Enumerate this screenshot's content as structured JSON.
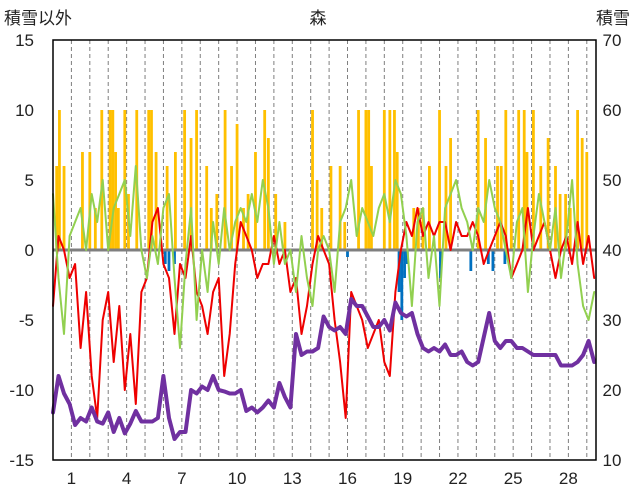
{
  "chart_data": {
    "type": "line",
    "title": "森",
    "left_axis_label": "積雪以外",
    "right_axis_label": "積雪",
    "left_ylim": [
      -15,
      15
    ],
    "left_yticks": [
      15,
      10,
      5,
      0,
      -5,
      -10,
      -15
    ],
    "right_ylim": [
      10,
      70
    ],
    "right_yticks": [
      70,
      60,
      50,
      40,
      30,
      20,
      10
    ],
    "xlim": [
      0,
      29.5
    ],
    "xticks": [
      1,
      4,
      7,
      10,
      13,
      16,
      19,
      22,
      25,
      28
    ],
    "grid_day_lines": true,
    "zero_line": true,
    "colors": {
      "red": "#ee0000",
      "green": "#92d050",
      "purple": "#7030a0",
      "orange": "#ffc000",
      "blue": "#0070c0",
      "zero": "#7f7f7f",
      "frame": "#000000",
      "grid": "#7f7f7f"
    },
    "series": [
      {
        "axis": "left",
        "color": "red",
        "x": [
          0,
          0.3,
          0.6,
          0.9,
          1.2,
          1.5,
          1.8,
          2.1,
          2.4,
          2.7,
          3.0,
          3.3,
          3.6,
          3.9,
          4.2,
          4.5,
          4.8,
          5.1,
          5.4,
          5.7,
          6.0,
          6.3,
          6.6,
          6.9,
          7.2,
          7.5,
          7.8,
          8.1,
          8.4,
          8.7,
          9.0,
          9.3,
          9.6,
          9.9,
          10.2,
          10.5,
          10.8,
          11.1,
          11.4,
          11.7,
          12.0,
          12.3,
          12.6,
          12.9,
          13.2,
          13.5,
          13.8,
          14.1,
          14.4,
          14.7,
          15.0,
          15.3,
          15.6,
          15.9,
          16.2,
          16.5,
          16.8,
          17.1,
          17.4,
          17.7,
          18.0,
          18.3,
          18.6,
          18.9,
          19.2,
          19.5,
          19.8,
          20.1,
          20.4,
          20.7,
          21.0,
          21.3,
          21.6,
          21.9,
          22.2,
          22.5,
          22.8,
          23.1,
          23.4,
          23.7,
          24.0,
          24.3,
          24.6,
          24.9,
          25.2,
          25.5,
          25.8,
          26.1,
          26.4,
          26.7,
          27.0,
          27.3,
          27.6,
          27.9,
          28.2,
          28.5,
          28.8,
          29.1,
          29.4
        ],
        "y": [
          -4,
          1,
          0,
          -2,
          -1,
          -7,
          -3,
          -9,
          -12,
          -5,
          -3,
          -8,
          -4,
          -10,
          -6,
          -11,
          -3,
          -2,
          2,
          3,
          -1,
          -2,
          -6,
          -1,
          -2,
          1,
          -3,
          -4,
          -6,
          -3,
          -2,
          -9,
          -6,
          -1,
          2,
          1,
          0,
          -2,
          -1,
          -1,
          1,
          -1,
          0,
          -3,
          -2,
          -6,
          -4,
          -1,
          1,
          0,
          -1,
          -5,
          -8,
          -12,
          -3,
          -4,
          -5,
          -7,
          -6,
          -5,
          -8,
          -9,
          -3,
          0,
          2,
          1,
          3,
          1,
          2,
          1,
          2,
          2,
          0,
          2,
          1,
          1,
          2,
          1,
          -1,
          0,
          1,
          2,
          1,
          -2,
          -1,
          0,
          3,
          0,
          1,
          2,
          0,
          -2,
          0,
          1,
          -1,
          2,
          -1,
          1,
          -2
        ]
      },
      {
        "axis": "left",
        "color": "green",
        "x": [
          0,
          0.3,
          0.6,
          0.9,
          1.2,
          1.5,
          1.8,
          2.1,
          2.4,
          2.7,
          3.0,
          3.3,
          3.6,
          3.9,
          4.2,
          4.5,
          4.8,
          5.1,
          5.4,
          5.7,
          6.0,
          6.3,
          6.6,
          6.9,
          7.2,
          7.5,
          7.8,
          8.1,
          8.4,
          8.7,
          9.0,
          9.3,
          9.6,
          9.9,
          10.2,
          10.5,
          10.8,
          11.1,
          11.4,
          11.7,
          12.0,
          12.3,
          12.6,
          12.9,
          13.2,
          13.5,
          13.8,
          14.1,
          14.4,
          14.7,
          15.0,
          15.3,
          15.6,
          15.9,
          16.2,
          16.5,
          16.8,
          17.1,
          17.4,
          17.7,
          18.0,
          18.3,
          18.6,
          18.9,
          19.2,
          19.5,
          19.8,
          20.1,
          20.4,
          20.7,
          21.0,
          21.3,
          21.6,
          21.9,
          22.2,
          22.5,
          22.8,
          23.1,
          23.4,
          23.7,
          24.0,
          24.3,
          24.6,
          24.9,
          25.2,
          25.5,
          25.8,
          26.1,
          26.4,
          26.7,
          27.0,
          27.3,
          27.6,
          27.9,
          28.2,
          28.5,
          28.8,
          29.1,
          29.4
        ],
        "y": [
          4,
          -2,
          -6,
          1,
          2,
          3,
          0,
          4,
          2,
          5,
          0,
          3,
          4,
          5,
          1,
          6,
          0,
          -2,
          1,
          -1,
          3,
          4,
          -2,
          -7,
          -1,
          3,
          -5,
          0,
          -3,
          2,
          -1,
          3,
          0,
          2,
          3,
          2,
          4,
          2,
          5,
          3,
          -1,
          2,
          -1,
          0,
          -3,
          1,
          -2,
          -4,
          0,
          1,
          0,
          -3,
          2,
          3,
          5,
          1,
          3,
          2,
          1,
          3,
          4,
          2,
          5,
          4,
          1,
          -4,
          2,
          3,
          -2,
          1,
          -4,
          3,
          4,
          5,
          3,
          2,
          0,
          3,
          2,
          5,
          3,
          2,
          0,
          -2,
          2,
          3,
          -3,
          1,
          4,
          2,
          0,
          3,
          -2,
          1,
          5,
          -1,
          -4,
          -5,
          -3
        ]
      },
      {
        "axis": "right",
        "color": "purple",
        "x": [
          0,
          0.3,
          0.6,
          0.9,
          1.2,
          1.5,
          1.8,
          2.1,
          2.4,
          2.7,
          3.0,
          3.3,
          3.6,
          3.9,
          4.2,
          4.5,
          4.8,
          5.1,
          5.4,
          5.7,
          6.0,
          6.3,
          6.6,
          6.9,
          7.2,
          7.5,
          7.8,
          8.1,
          8.4,
          8.7,
          9.0,
          9.3,
          9.6,
          9.9,
          10.2,
          10.5,
          10.8,
          11.1,
          11.4,
          11.7,
          12.0,
          12.3,
          12.6,
          12.9,
          13.2,
          13.5,
          13.8,
          14.1,
          14.4,
          14.7,
          15.0,
          15.3,
          15.6,
          15.9,
          16.2,
          16.5,
          16.8,
          17.1,
          17.4,
          17.7,
          18.0,
          18.3,
          18.6,
          18.9,
          19.2,
          19.5,
          19.8,
          20.1,
          20.4,
          20.7,
          21.0,
          21.3,
          21.6,
          21.9,
          22.2,
          22.5,
          22.8,
          23.1,
          23.4,
          23.7,
          24.0,
          24.3,
          24.6,
          24.9,
          25.2,
          25.5,
          25.8,
          26.1,
          26.4,
          26.7,
          27.0,
          27.3,
          27.6,
          27.9,
          28.2,
          28.5,
          28.8,
          29.1,
          29.4
        ],
        "y": [
          16.8,
          22,
          19.5,
          18,
          15,
          16,
          15.5,
          17.5,
          15.5,
          15.2,
          16.8,
          14,
          16,
          13.8,
          15.2,
          17,
          15.5,
          15.5,
          15.5,
          16,
          22,
          16,
          13,
          14,
          14,
          20,
          19.5,
          20.5,
          20,
          22,
          20,
          19.8,
          19.5,
          19.5,
          20,
          17,
          17.5,
          16.8,
          17.5,
          18.5,
          17.5,
          21,
          19,
          17.5,
          28,
          25,
          25.5,
          25.5,
          26,
          30.5,
          29,
          28.5,
          29,
          28,
          33,
          32,
          32,
          30.5,
          29,
          29,
          30,
          28.5,
          32.5,
          31,
          30.5,
          31,
          28,
          26,
          25.5,
          26,
          25.5,
          26.5,
          25,
          25,
          25.5,
          24,
          23.5,
          24,
          27.5,
          31,
          27,
          26,
          27,
          27,
          26,
          26,
          25.5,
          25,
          25,
          25,
          25,
          25,
          23.5,
          23.5,
          23.5,
          24,
          25,
          27,
          24
        ]
      }
    ],
    "bars": [
      {
        "axis": "left",
        "color": "orange",
        "x": [
          0.2,
          0.35,
          0.6,
          1.6,
          2.0,
          2.3,
          2.65,
          3.1,
          3.25,
          3.4,
          3.55,
          3.9,
          4.1,
          4.55,
          5.2,
          5.35,
          5.6,
          6.2,
          6.65,
          7.15,
          7.5,
          7.8,
          8.35,
          8.6,
          8.9,
          9.35,
          9.7,
          10.0,
          10.35,
          10.6,
          11.0,
          11.5,
          11.7,
          12.1,
          12.6,
          14.1,
          14.35,
          14.6,
          15.1,
          15.6,
          15.85,
          16.6,
          17.0,
          17.15,
          17.3,
          18.0,
          18.3,
          18.55,
          18.7,
          19.6,
          19.85,
          20.1,
          20.45,
          21.0,
          21.35,
          21.6,
          23.1,
          23.5,
          24.15,
          24.35,
          24.6,
          24.9,
          25.3,
          25.6,
          25.75,
          26.1,
          26.5,
          26.9,
          27.3,
          27.55,
          27.85,
          28.1,
          28.5,
          28.75,
          29.0
        ],
        "y": [
          6,
          10,
          6,
          7,
          7,
          3,
          10,
          10,
          10,
          7,
          3,
          10,
          4,
          10,
          10,
          10,
          7,
          6,
          7,
          10,
          8,
          10,
          6,
          3,
          4,
          10,
          6,
          9,
          3,
          4,
          7,
          10,
          8,
          4,
          2,
          10,
          5,
          3,
          6,
          6,
          2,
          10,
          10,
          10,
          6,
          10,
          10,
          10,
          7,
          3,
          3,
          3,
          6,
          10,
          6,
          8,
          10,
          8,
          6,
          6,
          10,
          5,
          10,
          10,
          7,
          10,
          6,
          8,
          6,
          4,
          4,
          3,
          10,
          8,
          7
        ]
      },
      {
        "axis": "left",
        "color": "blue",
        "x": [
          6.1,
          6.3,
          6.6,
          16.0,
          18.8,
          18.95,
          19.1,
          19.25,
          21.05,
          22.7,
          23.65,
          23.9,
          24.55
        ],
        "y": [
          -1,
          -1.5,
          -1,
          -0.5,
          -3,
          -5,
          -2,
          -1,
          -2,
          -1.5,
          -1,
          -1.5,
          -1
        ]
      }
    ]
  }
}
